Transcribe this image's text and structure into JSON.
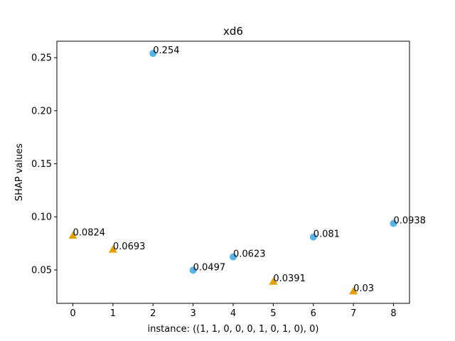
{
  "chart_data": {
    "type": "scatter",
    "title": "xd6",
    "xlabel": "instance: ((1, 1, 0, 0, 0, 1, 0, 1, 0), 0)",
    "ylabel": "SHAP values",
    "xlim": [
      -0.4,
      8.4
    ],
    "ylim": [
      0.0185,
      0.2655
    ],
    "xticks": [
      0,
      1,
      2,
      3,
      4,
      5,
      6,
      7,
      8
    ],
    "xtick_labels": [
      "0",
      "1",
      "2",
      "3",
      "4",
      "5",
      "6",
      "7",
      "8"
    ],
    "yticks": [
      0.05,
      0.1,
      0.15,
      0.2,
      0.25
    ],
    "ytick_labels": [
      "0.05",
      "0.10",
      "0.15",
      "0.20",
      "0.25"
    ],
    "grid": false,
    "legend": "none",
    "series": [
      {
        "marker": "circle",
        "color": "#56B4E9",
        "points": [
          {
            "x": 2,
            "y": 0.254,
            "label": "0.254"
          },
          {
            "x": 3,
            "y": 0.0497,
            "label": "0.0497"
          },
          {
            "x": 4,
            "y": 0.0623,
            "label": "0.0623"
          },
          {
            "x": 6,
            "y": 0.081,
            "label": "0.081"
          },
          {
            "x": 8,
            "y": 0.0938,
            "label": "0.0938"
          }
        ]
      },
      {
        "marker": "triangle",
        "color": "#E69F00",
        "points": [
          {
            "x": 0,
            "y": 0.0824,
            "label": "0.0824"
          },
          {
            "x": 1,
            "y": 0.0693,
            "label": "0.0693"
          },
          {
            "x": 5,
            "y": 0.0391,
            "label": "0.0391"
          },
          {
            "x": 7,
            "y": 0.03,
            "label": "0.03"
          }
        ]
      }
    ]
  }
}
